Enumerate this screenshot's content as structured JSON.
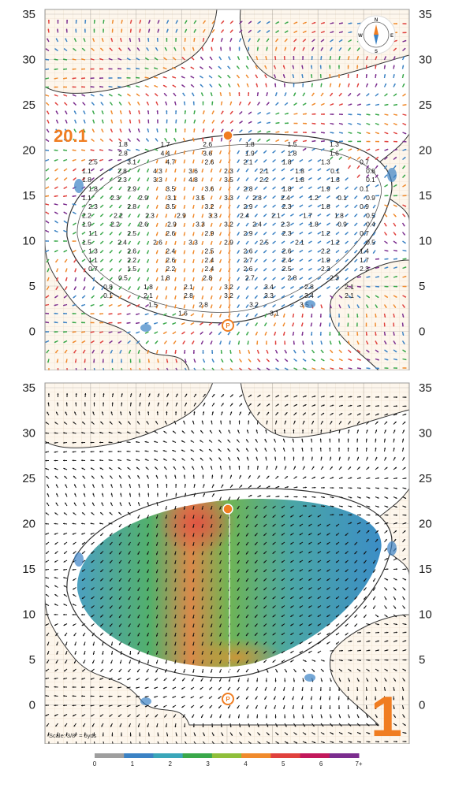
{
  "top_map": {
    "y_axis_labels": [
      "35",
      "30",
      "25",
      "20",
      "15",
      "10",
      "5",
      "0"
    ],
    "distance_label": "20.1",
    "compass": {
      "n": "N",
      "s": "S",
      "e": "E",
      "w": "W"
    }
  },
  "bottom_map": {
    "y_axis_labels": [
      "35",
      "30",
      "25",
      "20",
      "15",
      "10",
      "5",
      "0"
    ],
    "hole_number": "1",
    "scale_note": "Scale: 3/8\" = 5yds"
  },
  "slope_numbers": [
    [
      "1.8",
      "1.7",
      "2.6",
      "1.8",
      "1.5",
      "1.3"
    ],
    [
      "2.8",
      "4.4",
      "3.6",
      "1.9",
      "1.8",
      "1.6"
    ],
    [
      "2.5",
      "3.1",
      "4.7",
      "2.6",
      "2.1",
      "1.8",
      "1.3",
      "0.7"
    ],
    [
      "1.1",
      "2.8",
      "4.3",
      "3.6",
      "2.3",
      "2.1",
      "1.8",
      "0.1",
      "0.8"
    ],
    [
      "1.8",
      "2.3",
      "3.3",
      "4.8",
      "3.5",
      "2.2",
      "1.8",
      "1.3",
      "0.1"
    ],
    [
      "1.8",
      "2.9",
      "3.5",
      "3.6",
      "2.8",
      "1.8",
      "1.9",
      "0.1"
    ],
    [
      "1.1",
      "2.3",
      "2.9",
      "3.1",
      "3.5",
      "3.3",
      "2.8",
      "2.4",
      "1.2",
      "0.1",
      "0.9"
    ],
    [
      "2.3",
      "2.8",
      "3.5",
      "3.2",
      "2.9",
      "2.3",
      "1.8",
      "0.9"
    ],
    [
      "2.2",
      "2.2",
      "2.3",
      "2.9",
      "3.3",
      "2.4",
      "2.1",
      "1.7",
      "1.8",
      "0.5"
    ],
    [
      "1.9",
      "2.2",
      "2.6",
      "2.9",
      "3.3",
      "3.2",
      "2.4",
      "2.3",
      "1.8",
      "0.9",
      "0.4"
    ],
    [
      "1.1",
      "2.5",
      "2.6",
      "2.9",
      "2.9",
      "2.3",
      "1.2",
      "0.7"
    ],
    [
      "1.5",
      "2.4",
      "2.6",
      "3.3",
      "2.9",
      "2.5",
      "2.1",
      "1.2",
      "0.5"
    ],
    [
      "1.3",
      "2.6",
      "2.4",
      "2.5",
      "2.6",
      "2.6",
      "2.2",
      "1.4"
    ],
    [
      "1.1",
      "2.2",
      "2.6",
      "2.4",
      "2.7",
      "2.4",
      "1.9",
      "1.7"
    ],
    [
      "0.7",
      "1.5",
      "2.2",
      "2.4",
      "2.6",
      "2.5",
      "2.3",
      "2.3"
    ],
    [
      "0.5",
      "1.8",
      "2.8",
      "2.7",
      "2.8",
      "2.3"
    ],
    [
      "0.8",
      "1.8",
      "2.1",
      "3.2",
      "3.4",
      "2.8",
      "2.1"
    ],
    [
      "0.1",
      "2.1",
      "2.8",
      "3.2",
      "3.3",
      "3.4",
      "2.1"
    ],
    [
      "1.5",
      "2.8",
      "3.2",
      "3.5"
    ],
    [
      "1.6",
      "3.1"
    ]
  ],
  "legend": {
    "labels": [
      "0",
      "1",
      "2",
      "3",
      "4",
      "5",
      "6",
      "7+"
    ],
    "colors": [
      "#9e9e9e",
      "#3b82c4",
      "#3aa6b9",
      "#39a84a",
      "#8fbf3a",
      "#f08a2c",
      "#e0413d",
      "#c2185b",
      "#7b2d8e"
    ]
  }
}
